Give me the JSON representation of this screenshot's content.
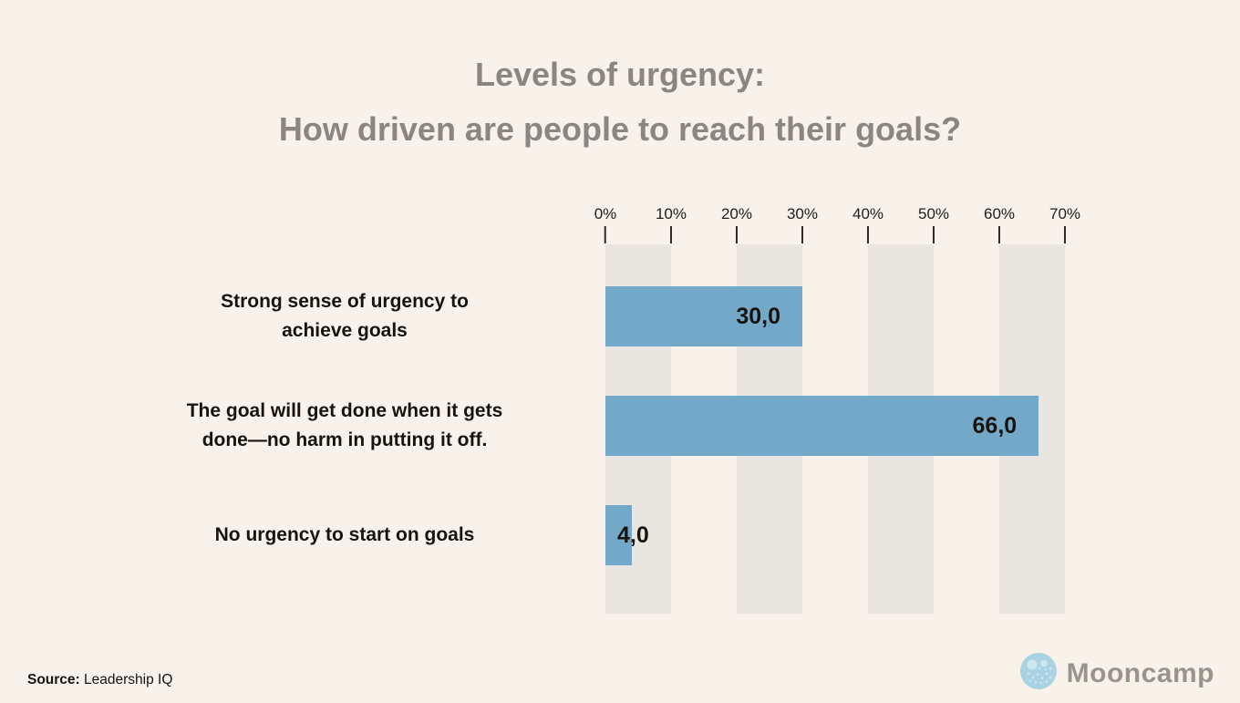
{
  "title": {
    "line1": "Levels of urgency:",
    "line2": "How driven are people to reach their goals?"
  },
  "chart_data": {
    "type": "bar",
    "orientation": "horizontal",
    "title": "Levels of urgency: How driven are people to reach their goals?",
    "categories": [
      "Strong sense of urgency to achieve goals",
      "The goal will get done when it gets done—no harm in putting it off.",
      "No urgency to start on goals"
    ],
    "values": [
      30.0,
      66.0,
      4.0
    ],
    "value_labels": [
      "30,0",
      "66,0",
      "4,0"
    ],
    "xlabel": "",
    "ylabel": "",
    "xlim": [
      0,
      70
    ],
    "x_tick_labels": [
      "0%",
      "10%",
      "20%",
      "30%",
      "40%",
      "50%",
      "60%",
      "70%"
    ],
    "grid": "alternating vertical bands behind bars (0-10%, 20-30%, 40-50%, 60-70%)",
    "legend": "none",
    "bar_color": "#74a8c8",
    "band_color": "#e9e6e2",
    "background_color": "#f8f2eb",
    "title_color": "#8b8680"
  },
  "axis": {
    "ticks": [
      "0%",
      "10%",
      "20%",
      "30%",
      "40%",
      "50%",
      "60%",
      "70%"
    ]
  },
  "rows": [
    {
      "label_line1": "Strong sense of urgency to",
      "label_line2": "achieve goals",
      "value_label": "30,0"
    },
    {
      "label_line1": "The goal will get done when it gets",
      "label_line2": "done—no harm in putting it off.",
      "value_label": "66,0"
    },
    {
      "label_line1": "No urgency to start on goals",
      "label_line2": "",
      "value_label": "4,0"
    }
  ],
  "footer": {
    "source_label": "Source:",
    "source_text": " Leadership IQ",
    "brand_name": "Mooncamp",
    "brand_icon": "moon-logo-icon",
    "brand_icon_color": "#a9d2e2",
    "brand_text_color": "#9a948d"
  }
}
